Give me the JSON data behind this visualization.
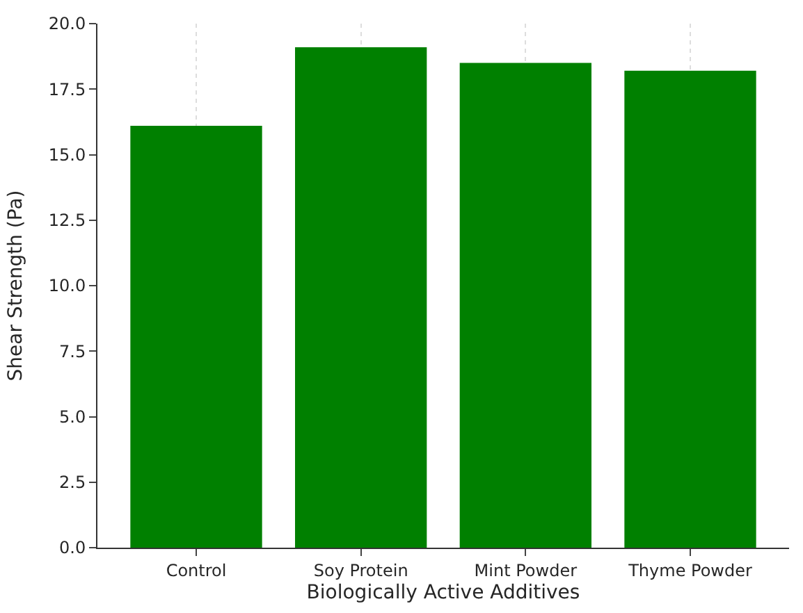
{
  "chart_data": {
    "type": "bar",
    "xlabel": "Biologically Active Additives",
    "ylabel": "Shear Strength (Pa)",
    "categories": [
      "Control",
      "Soy Protein",
      "Mint Powder",
      "Thyme Powder"
    ],
    "values": [
      16.1,
      19.1,
      18.5,
      18.2
    ],
    "color": "#008000",
    "ylim": [
      0,
      20
    ],
    "yticks": [
      {
        "value": 0,
        "label": "0.0"
      },
      {
        "value": 2.5,
        "label": "2.5"
      },
      {
        "value": 5,
        "label": "5.0"
      },
      {
        "value": 7.5,
        "label": "7.5"
      },
      {
        "value": 10,
        "label": "10.0"
      },
      {
        "value": 12.5,
        "label": "12.5"
      },
      {
        "value": 15,
        "label": "15.0"
      },
      {
        "value": 17.5,
        "label": "17.5"
      },
      {
        "value": 20,
        "label": "20.0"
      }
    ],
    "grid": "x"
  }
}
